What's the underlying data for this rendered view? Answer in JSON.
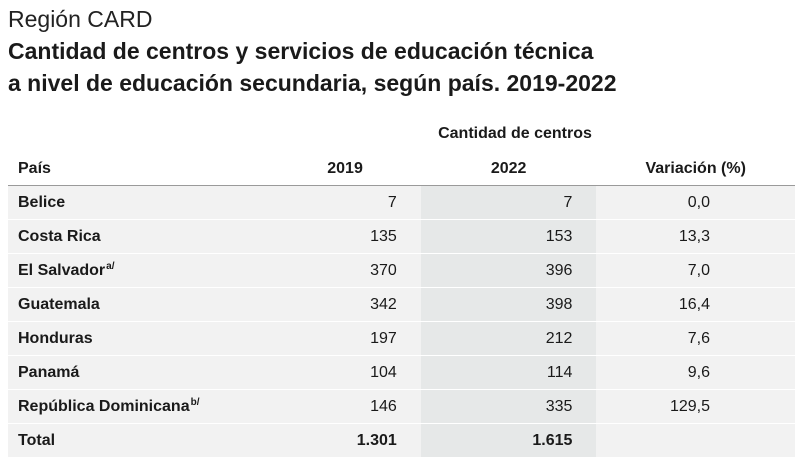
{
  "header": {
    "region": "Región CARD",
    "title_line1": "Cantidad de centros y servicios de educación técnica",
    "title_line2": "a nivel de educación secundaria, según país. 2019-2022"
  },
  "table": {
    "group_header": "Cantidad de centros",
    "columns": [
      "País",
      "2019",
      "2022",
      "Variación (%)"
    ],
    "rows": [
      {
        "country": "Belice",
        "note": "",
        "v2019": "7",
        "v2022": "7",
        "variation": "0,0"
      },
      {
        "country": "Costa Rica",
        "note": "",
        "v2019": "135",
        "v2022": "153",
        "variation": "13,3"
      },
      {
        "country": "El Salvador",
        "note": "a/",
        "v2019": "370",
        "v2022": "396",
        "variation": "7,0"
      },
      {
        "country": "Guatemala",
        "note": "",
        "v2019": "342",
        "v2022": "398",
        "variation": "16,4"
      },
      {
        "country": "Honduras",
        "note": "",
        "v2019": "197",
        "v2022": "212",
        "variation": "7,6"
      },
      {
        "country": "Panamá",
        "note": "",
        "v2019": "104",
        "v2022": "114",
        "variation": "9,6"
      },
      {
        "country": "República Dominicana",
        "note": "b/",
        "v2019": "146",
        "v2022": "335",
        "variation": "129,5"
      }
    ],
    "total": {
      "label": "Total",
      "v2019": "1.301",
      "v2022": "1.615",
      "variation": ""
    }
  },
  "colors": {
    "row_bg": "#f2f2f2",
    "highlight_col_bg": "#e6e8e8",
    "rule": "#9a9a9a"
  }
}
